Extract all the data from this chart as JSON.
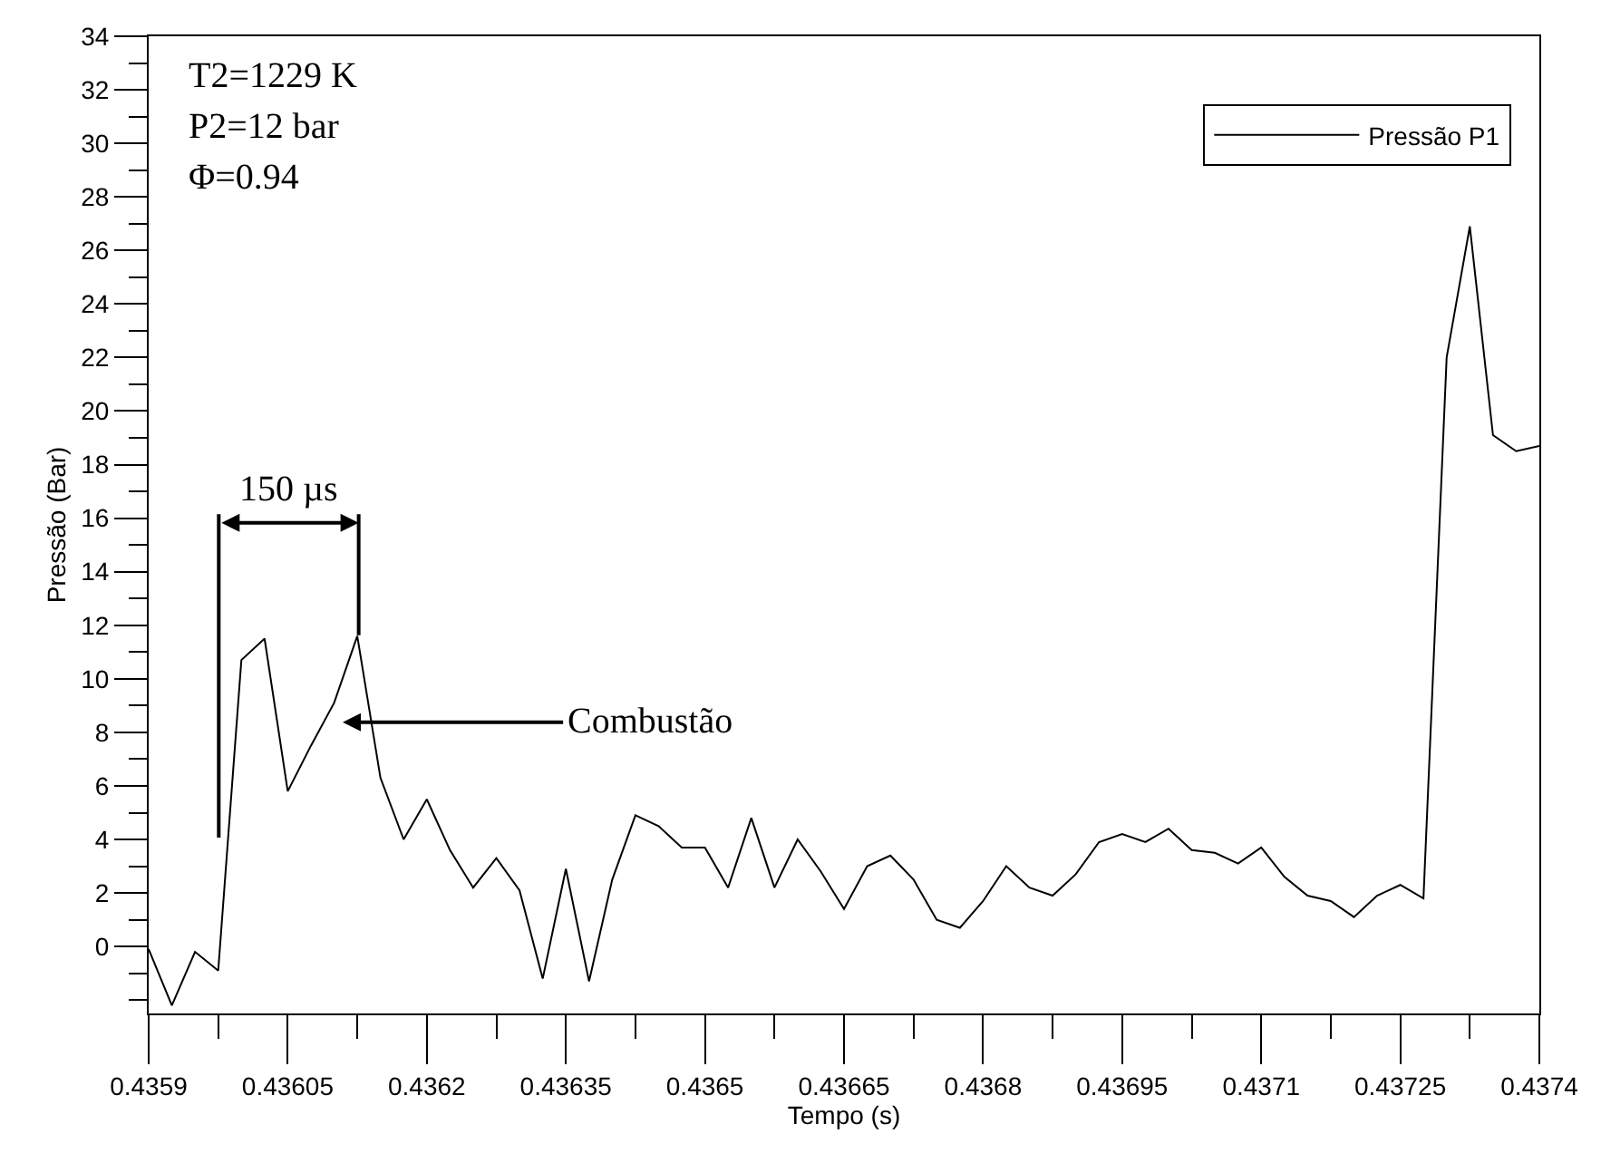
{
  "chart_data": {
    "type": "line",
    "xlabel": "Tempo (s)",
    "ylabel": "Pressão (Bar)",
    "x": [
      0.4359,
      0.435925,
      0.43595,
      0.435975,
      0.436,
      0.436025,
      0.43605,
      0.436075,
      0.4361,
      0.436125,
      0.43615,
      0.436175,
      0.4362,
      0.436225,
      0.43625,
      0.436275,
      0.4363,
      0.436325,
      0.43635,
      0.436375,
      0.4364,
      0.436425,
      0.43645,
      0.436475,
      0.4365,
      0.436525,
      0.43655,
      0.436575,
      0.4366,
      0.436625,
      0.43665,
      0.436675,
      0.4367,
      0.436725,
      0.43675,
      0.436775,
      0.4368,
      0.436825,
      0.43685,
      0.436875,
      0.4369,
      0.436925,
      0.43695,
      0.436975,
      0.437,
      0.437025,
      0.43705,
      0.437075,
      0.4371,
      0.437125,
      0.43715,
      0.437175,
      0.4372,
      0.437225,
      0.43725,
      0.437275,
      0.4373,
      0.437325,
      0.43735,
      0.437375,
      0.4374
    ],
    "series": [
      {
        "name": "Pressão P1",
        "color": "#000000",
        "values": [
          -0.1,
          -2.2,
          -0.2,
          -0.9,
          10.7,
          11.5,
          5.8,
          7.5,
          9.1,
          11.6,
          6.3,
          4.0,
          5.5,
          3.6,
          2.2,
          3.3,
          2.1,
          -1.2,
          2.9,
          -1.3,
          2.5,
          4.9,
          4.5,
          3.7,
          3.7,
          2.2,
          4.8,
          2.2,
          4.0,
          2.8,
          1.4,
          3.0,
          3.4,
          2.5,
          1.0,
          0.7,
          1.7,
          3.0,
          2.2,
          1.9,
          2.7,
          3.9,
          4.2,
          3.9,
          4.4,
          3.6,
          3.5,
          3.1,
          3.7,
          2.6,
          1.9,
          1.7,
          1.1,
          1.9,
          2.3,
          1.8,
          22.0,
          26.9,
          19.1,
          18.5,
          18.7
        ]
      }
    ],
    "xlim": [
      0.4359,
      0.4374
    ],
    "xticks": [
      0.4359,
      0.43605,
      0.4362,
      0.43635,
      0.4365,
      0.43665,
      0.4368,
      0.43695,
      0.4371,
      0.43725,
      0.4374
    ],
    "ylim": [
      -2.5,
      34
    ],
    "yticks": [
      0,
      2,
      4,
      6,
      8,
      10,
      12,
      14,
      16,
      18,
      20,
      22,
      24,
      26,
      28,
      30,
      32,
      34
    ],
    "legend": "top right",
    "marker": "none",
    "line_style": "solid",
    "annotations": [
      "T2=1229 K",
      "P2=12 bar",
      "Φ=0.94",
      "150 µs",
      "Combustão"
    ]
  }
}
